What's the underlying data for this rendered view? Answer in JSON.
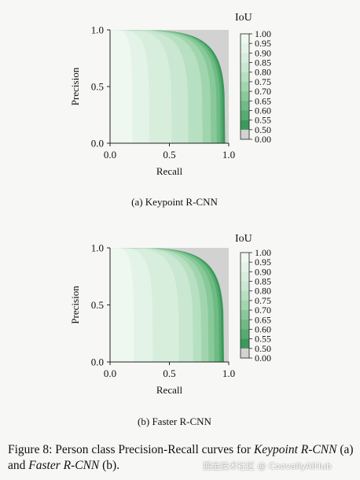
{
  "chart_data": [
    {
      "type": "area",
      "panel_label": "(a) Keypoint R-CNN",
      "xlabel": "Recall",
      "ylabel": "Precision",
      "xlim": [
        0,
        1
      ],
      "ylim": [
        0,
        1
      ],
      "xticks": [
        "0.0",
        "0.5",
        "1.0"
      ],
      "yticks": [
        "0.0",
        "0.5",
        "1.0"
      ],
      "colorbar": {
        "title": "IoU",
        "ticks": [
          "1.00",
          "0.95",
          "0.90",
          "0.85",
          "0.80",
          "0.75",
          "0.70",
          "0.65",
          "0.60",
          "0.55",
          "0.50",
          "0.00"
        ]
      },
      "series": [
        {
          "iou": "0.00",
          "recall_max": 0.99,
          "precision_at_recall_1": 1.0
        },
        {
          "iou": "0.50",
          "recall_max": 0.97,
          "precision_at_recall_1": 0.0
        },
        {
          "iou": "0.55",
          "recall_max": 0.95,
          "precision_at_recall_1": 0.0
        },
        {
          "iou": "0.60",
          "recall_max": 0.93,
          "precision_at_recall_1": 0.0
        },
        {
          "iou": "0.65",
          "recall_max": 0.9,
          "precision_at_recall_1": 0.0
        },
        {
          "iou": "0.70",
          "recall_max": 0.85,
          "precision_at_recall_1": 0.0
        },
        {
          "iou": "0.75",
          "recall_max": 0.78,
          "precision_at_recall_1": 0.0
        },
        {
          "iou": "0.80",
          "recall_max": 0.66,
          "precision_at_recall_1": 0.0
        },
        {
          "iou": "0.85",
          "recall_max": 0.52,
          "precision_at_recall_1": 0.0
        },
        {
          "iou": "0.90",
          "recall_max": 0.33,
          "precision_at_recall_1": 0.0
        },
        {
          "iou": "0.95",
          "recall_max": 0.19,
          "precision_at_recall_1": 0.0
        }
      ]
    },
    {
      "type": "area",
      "panel_label": "(b) Faster R-CNN",
      "xlabel": "Recall",
      "ylabel": "Precision",
      "xlim": [
        0,
        1
      ],
      "ylim": [
        0,
        1
      ],
      "xticks": [
        "0.0",
        "0.5",
        "1.0"
      ],
      "yticks": [
        "0.0",
        "0.5",
        "1.0"
      ],
      "colorbar": {
        "title": "IoU",
        "ticks": [
          "1.00",
          "0.95",
          "0.90",
          "0.85",
          "0.80",
          "0.75",
          "0.70",
          "0.65",
          "0.60",
          "0.55",
          "0.50",
          "0.00"
        ]
      },
      "series": [
        {
          "iou": "0.00",
          "recall_max": 0.99,
          "precision_at_recall_1": 1.0
        },
        {
          "iou": "0.50",
          "recall_max": 0.96,
          "precision_at_recall_1": 0.0
        },
        {
          "iou": "0.55",
          "recall_max": 0.94,
          "precision_at_recall_1": 0.0
        },
        {
          "iou": "0.60",
          "recall_max": 0.92,
          "precision_at_recall_1": 0.0
        },
        {
          "iou": "0.65",
          "recall_max": 0.88,
          "precision_at_recall_1": 0.0
        },
        {
          "iou": "0.70",
          "recall_max": 0.83,
          "precision_at_recall_1": 0.0
        },
        {
          "iou": "0.75",
          "recall_max": 0.77,
          "precision_at_recall_1": 0.0
        },
        {
          "iou": "0.80",
          "recall_max": 0.7,
          "precision_at_recall_1": 0.0
        },
        {
          "iou": "0.85",
          "recall_max": 0.58,
          "precision_at_recall_1": 0.0
        },
        {
          "iou": "0.90",
          "recall_max": 0.36,
          "precision_at_recall_1": 0.0
        },
        {
          "iou": "0.95",
          "recall_max": 0.2,
          "precision_at_recall_1": 0.0
        }
      ]
    }
  ],
  "colors": {
    "iou_0.00": "#d2d2d2",
    "iou_0.50": "#3b9a5a",
    "iou_0.55": "#56ab70",
    "iou_0.60": "#6fbb85",
    "iou_0.65": "#88c99a",
    "iou_0.70": "#a1d5ae",
    "iou_0.75": "#b7dfc1",
    "iou_0.80": "#c9e7d1",
    "iou_0.85": "#d8eedd",
    "iou_0.90": "#e4f3e8",
    "iou_0.95": "#eef8f1",
    "iou_1.00": "#ffffff"
  },
  "caption": {
    "figure_number": "Figure 8:",
    "text_1": "Person class Precision-Recall curves for",
    "model_a": "Keypoint R-CNN",
    "text_2": "(a) and",
    "model_b": "Faster R-CNN",
    "text_3": "(b)."
  },
  "watermark": "掘金技术社区 @ CoovallyAIHub"
}
